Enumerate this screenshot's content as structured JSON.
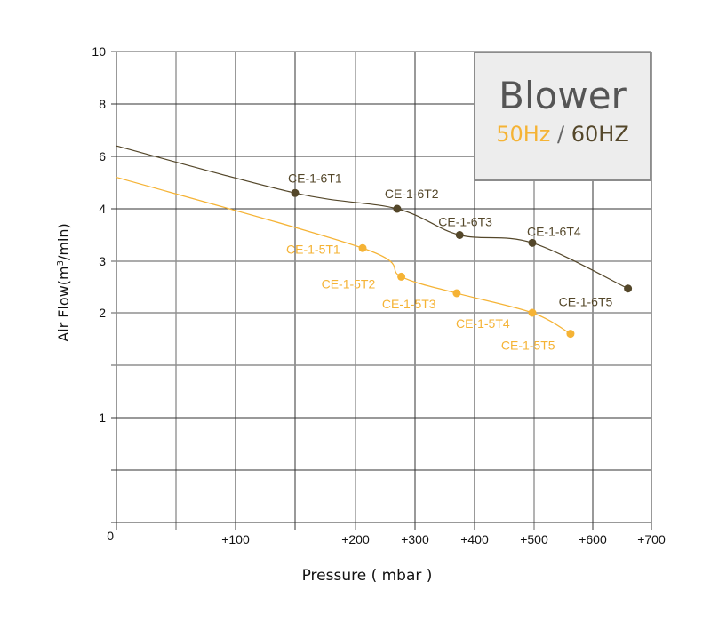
{
  "chart_data": {
    "type": "line",
    "title": "Blower",
    "subtitle": "50Hz / 60HZ",
    "xlabel": "Pressure ( mbar )",
    "ylabel": "Air Flow(m³/min)",
    "x_tick_labels": [
      "0",
      "",
      "+100",
      "",
      "+200",
      "+300",
      "+400",
      "+500",
      "+600",
      "+700"
    ],
    "x_tick_values": [
      0,
      50,
      100,
      150,
      200,
      300,
      400,
      500,
      600,
      700
    ],
    "y_tick_labels": [
      "0",
      "",
      "1",
      "",
      "2",
      "3",
      "4",
      "6",
      "8",
      "10"
    ],
    "y_tick_values": [
      0,
      0.5,
      1,
      1.5,
      2,
      3,
      4,
      6,
      8,
      10
    ],
    "grid": true,
    "legend_position": "top-right",
    "series": [
      {
        "name": "60Hz",
        "color": "#54472a",
        "curve_start": {
          "x": 0,
          "y": 6.4
        },
        "points": [
          {
            "label": "CE-1-6T1",
            "x": 150,
            "y": 4.6
          },
          {
            "label": "CE-1-6T2",
            "x": 270,
            "y": 4.0
          },
          {
            "label": "CE-1-6T3",
            "x": 375,
            "y": 3.5
          },
          {
            "label": "CE-1-6T4",
            "x": 497,
            "y": 3.35
          },
          {
            "label": "CE-1-6T5",
            "x": 660,
            "y": 2.47
          }
        ]
      },
      {
        "name": "50Hz",
        "color": "#f5b335",
        "curve_start": {
          "x": 0,
          "y": 5.2
        },
        "points": [
          {
            "label": "CE-1-5T1",
            "x": 212,
            "y": 3.25
          },
          {
            "label": "CE-1-5T2",
            "x": 277,
            "y": 2.7
          },
          {
            "label": "CE-1-5T3",
            "x": 370,
            "y": 2.38
          },
          {
            "label": "CE-1-5T4",
            "x": 497,
            "y": 2.0
          },
          {
            "label": "CE-1-5T5",
            "x": 562,
            "y": 1.8
          }
        ]
      }
    ]
  },
  "legend": {
    "title": "Blower",
    "hz50": "50Hz",
    "separator": " / ",
    "hz60": "60HZ",
    "hz50_color": "#f5b335",
    "hz60_color": "#54472a",
    "separator_color": "#666666"
  },
  "axes": {
    "x_title": "Pressure ( mbar )",
    "y_title_main": "Air Flow(m",
    "y_title_sup": "3",
    "y_title_end": "/min)"
  }
}
